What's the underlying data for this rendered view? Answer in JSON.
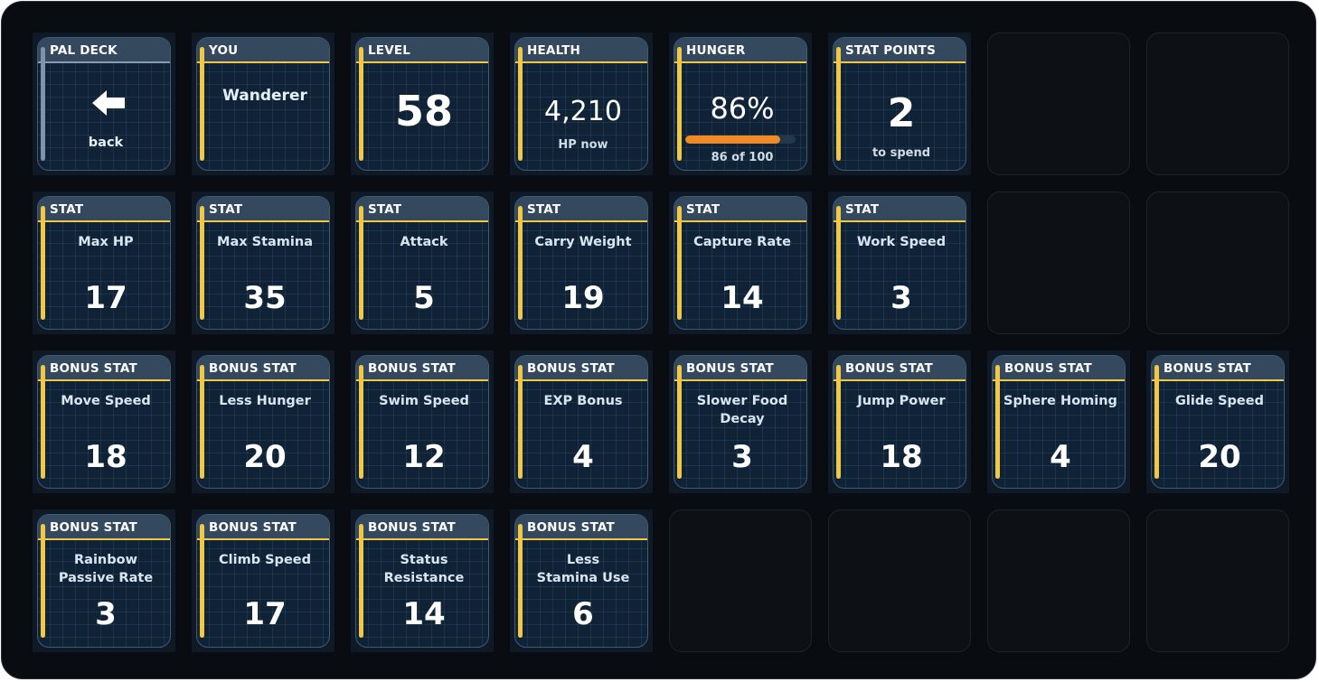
{
  "colors": {
    "accent": "#f2c744",
    "background": "#090c10",
    "tile_header": "#34495e",
    "hunger_bar": "#f08a24"
  },
  "back_tile": {
    "header": "PAL DECK",
    "icon": "back-arrow-icon",
    "label": "back"
  },
  "you_tile": {
    "header": "YOU",
    "name": "Wanderer"
  },
  "level_tile": {
    "header": "LEVEL",
    "value": "58"
  },
  "health_tile": {
    "header": "HEALTH",
    "value": "4,210",
    "sub": "HP now"
  },
  "hunger_tile": {
    "header": "HUNGER",
    "value": "86%",
    "current": 86,
    "max": 100,
    "sub": "86 of 100"
  },
  "stat_points_tile": {
    "header": "STAT POINTS",
    "value": "2",
    "sub": "to spend"
  },
  "stats": [
    {
      "header": "STAT",
      "label": "Max HP",
      "value": "17"
    },
    {
      "header": "STAT",
      "label": "Max Stamina",
      "value": "35"
    },
    {
      "header": "STAT",
      "label": "Attack",
      "value": "5"
    },
    {
      "header": "STAT",
      "label": "Carry Weight",
      "value": "19"
    },
    {
      "header": "STAT",
      "label": "Capture Rate",
      "value": "14"
    },
    {
      "header": "STAT",
      "label": "Work Speed",
      "value": "3"
    }
  ],
  "bonus_stats": [
    {
      "header": "BONUS STAT",
      "label": "Move Speed",
      "value": "18"
    },
    {
      "header": "BONUS STAT",
      "label": "Less Hunger",
      "value": "20"
    },
    {
      "header": "BONUS STAT",
      "label": "Swim Speed",
      "value": "12"
    },
    {
      "header": "BONUS STAT",
      "label": "EXP Bonus",
      "value": "4"
    },
    {
      "header": "BONUS STAT",
      "label": "Slower Food Decay",
      "value": "3"
    },
    {
      "header": "BONUS STAT",
      "label": "Jump Power",
      "value": "18"
    },
    {
      "header": "BONUS STAT",
      "label": "Sphere Homing",
      "value": "4"
    },
    {
      "header": "BONUS STAT",
      "label": "Glide Speed",
      "value": "20"
    },
    {
      "header": "BONUS STAT",
      "label": "Rainbow Passive Rate",
      "value": "3"
    },
    {
      "header": "BONUS STAT",
      "label": "Climb Speed",
      "value": "17"
    },
    {
      "header": "BONUS STAT",
      "label": "Status Resistance",
      "value": "14"
    },
    {
      "header": "BONUS STAT",
      "label": "Less Stamina Use",
      "value": "6"
    }
  ]
}
